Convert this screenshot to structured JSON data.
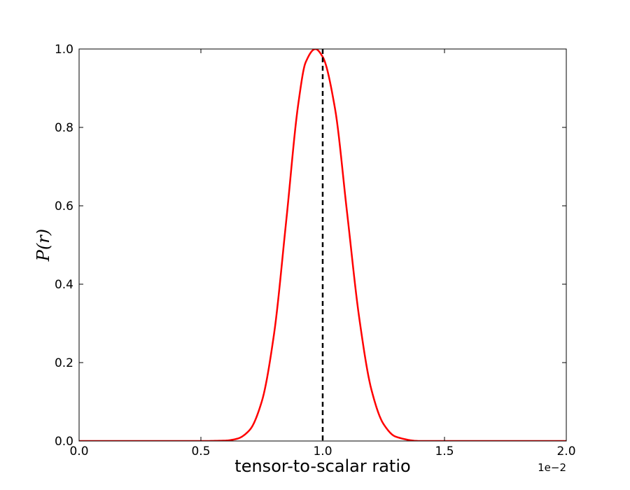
{
  "chart_data": {
    "type": "line",
    "title": "",
    "xlabel": "tensor-to-scalar ratio",
    "ylabel": "P(r)",
    "x_offset_text": "1e−2",
    "xlim": [
      0.0,
      2.0
    ],
    "ylim": [
      0.0,
      1.0
    ],
    "xticks": [
      0.0,
      0.5,
      1.0,
      1.5,
      2.0
    ],
    "xtick_labels": [
      "0.0",
      "0.5",
      "1.0",
      "1.5",
      "2.0"
    ],
    "yticks": [
      0.0,
      0.2,
      0.4,
      0.6,
      0.8,
      1.0
    ],
    "ytick_labels": [
      "0.0",
      "0.2",
      "0.4",
      "0.6",
      "0.8",
      "1.0"
    ],
    "grid": false,
    "series": [
      {
        "color": "#ff0000",
        "style": "solid",
        "x": [
          0.0,
          0.5,
          0.6,
          0.65,
          0.7,
          0.75,
          0.8,
          0.85,
          0.9,
          0.93,
          0.97,
          1.0,
          1.05,
          1.1,
          1.15,
          1.2,
          1.25,
          1.3,
          1.4,
          1.5,
          2.0
        ],
        "y": [
          0.0,
          0.0,
          0.001,
          0.006,
          0.028,
          0.101,
          0.272,
          0.56,
          0.861,
          0.966,
          1.0,
          0.98,
          0.85,
          0.583,
          0.314,
          0.131,
          0.043,
          0.011,
          0.0,
          0.0,
          0.0
        ]
      }
    ],
    "reference_lines": [
      {
        "orientation": "vertical",
        "x": 1.0,
        "color": "#000000",
        "style": "dashed"
      }
    ]
  }
}
